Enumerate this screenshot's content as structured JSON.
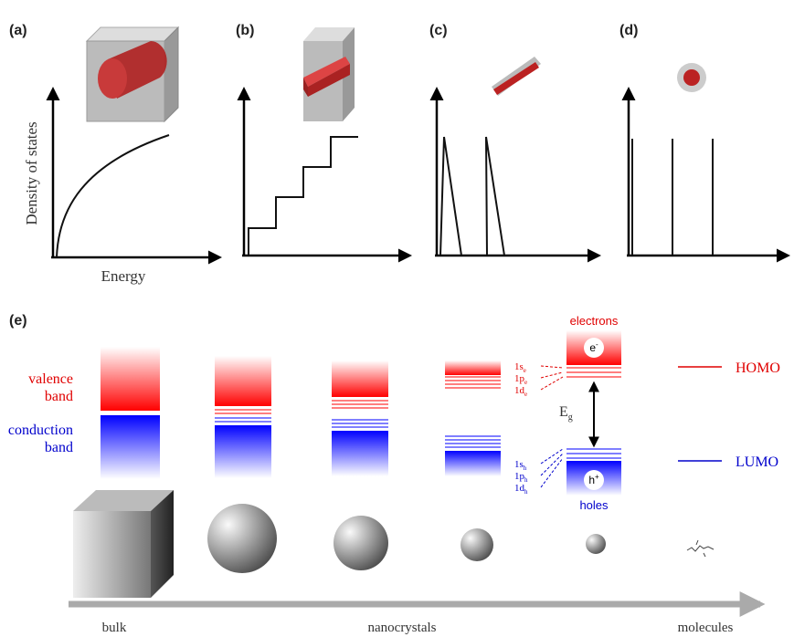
{
  "panels": [
    {
      "label": "(a)"
    },
    {
      "label": "(b)"
    },
    {
      "label": "(c)"
    },
    {
      "label": "(d)"
    }
  ],
  "axes": {
    "y_label": "Density of states",
    "x_label": "Energy"
  },
  "panel_e": {
    "label": "(e)",
    "valence_band": [
      "valence",
      "band"
    ],
    "conduction_band": [
      "conduction",
      "band"
    ],
    "electrons": "electrons",
    "holes": "holes",
    "electron_symbol": {
      "main": "e",
      "sup": "-"
    },
    "hole_symbol": {
      "main": "h",
      "sup": "+"
    },
    "gap": {
      "main": "E",
      "sub": "g"
    },
    "electron_levels": [
      {
        "main": "1s",
        "sub": "e"
      },
      {
        "main": "1p",
        "sub": "e"
      },
      {
        "main": "1d",
        "sub": "e"
      }
    ],
    "hole_levels": [
      {
        "main": "1s",
        "sub": "h"
      },
      {
        "main": "1p",
        "sub": "h"
      },
      {
        "main": "1d",
        "sub": "h"
      }
    ],
    "homo": "HOMO",
    "lumo": "LUMO",
    "size_axis": [
      "bulk",
      "nanocrystals",
      "molecules"
    ]
  }
}
